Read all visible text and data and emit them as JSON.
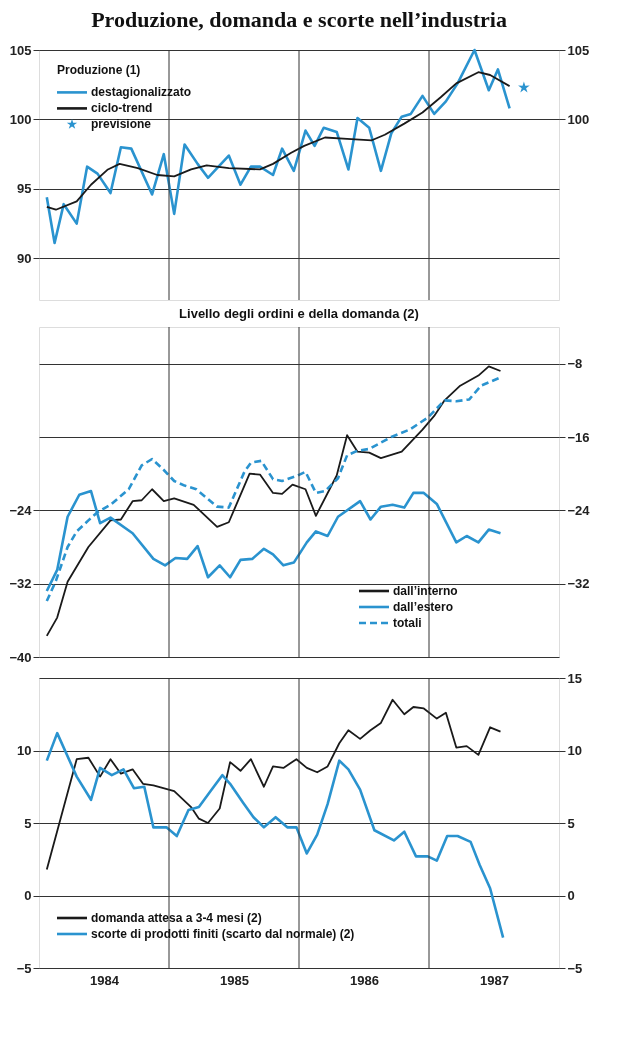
{
  "chart_data": [
    {
      "type": "line",
      "title": "Produzione, domanda e scorte nell’industria",
      "legend_title": "Produzione (1)",
      "legend": "top left",
      "grid": true,
      "tick_labels": "y",
      "xlim": [
        1984,
        1988
      ],
      "xticks": [
        {
          "value": 1985,
          "label": null
        },
        {
          "value": 1986,
          "label": null
        },
        {
          "value": 1987,
          "label": null
        }
      ],
      "ylim": [
        87,
        105
      ],
      "yticks": [
        90,
        95,
        100,
        105
      ],
      "y2lim": [
        87,
        105
      ],
      "y2ticks": [
        100,
        105
      ],
      "series": [
        {
          "name": "destagionalizzato",
          "color": "#2a93cf",
          "x": [
            1984.06,
            1984.12,
            1984.19,
            1984.29,
            1984.37,
            1984.45,
            1984.55,
            1984.63,
            1984.71,
            1984.87,
            1984.96,
            1985.04,
            1985.12,
            1985.22,
            1985.3,
            1985.46,
            1985.55,
            1985.63,
            1985.7,
            1985.8,
            1985.87,
            1985.96,
            1986.05,
            1986.12,
            1986.19,
            1986.29,
            1986.38,
            1986.45,
            1986.54,
            1986.63,
            1986.71,
            1986.79,
            1986.86,
            1986.95,
            1987.04,
            1987.13,
            1987.22,
            1987.35,
            1987.46,
            1987.53,
            1987.62
          ],
          "values": [
            94.4,
            91.1,
            93.9,
            92.5,
            96.6,
            96.1,
            94.7,
            98.0,
            97.9,
            94.6,
            97.5,
            93.2,
            98.2,
            96.8,
            95.8,
            97.4,
            95.3,
            96.6,
            96.6,
            96.0,
            97.9,
            96.3,
            99.2,
            98.1,
            99.4,
            99.1,
            96.4,
            100.1,
            99.4,
            96.3,
            99.0,
            100.2,
            100.4,
            101.7,
            100.4,
            101.3,
            102.6,
            105.0,
            102.1,
            103.6,
            100.8
          ]
        },
        {
          "name": "ciclo-trend",
          "color": "#1a1a1a",
          "x": [
            1984.06,
            1984.13,
            1984.29,
            1984.4,
            1984.53,
            1984.62,
            1984.76,
            1984.91,
            1985.04,
            1985.17,
            1985.29,
            1985.46,
            1985.7,
            1985.8,
            1985.94,
            1986.04,
            1986.2,
            1986.37,
            1986.56,
            1986.66,
            1986.81,
            1986.95,
            1987.09,
            1987.21,
            1987.38,
            1987.47,
            1987.62
          ],
          "values": [
            93.7,
            93.5,
            94.1,
            95.3,
            96.4,
            96.8,
            96.5,
            96.0,
            95.9,
            96.4,
            96.7,
            96.5,
            96.4,
            96.8,
            97.6,
            98.1,
            98.7,
            98.6,
            98.5,
            98.9,
            99.7,
            100.5,
            101.6,
            102.6,
            103.4,
            103.2,
            102.4
          ]
        },
        {
          "name": "previsione",
          "type": "scatter",
          "marker": "star",
          "color": "#2a93cf",
          "x": [
            1987.73
          ],
          "values": [
            102.3
          ]
        }
      ]
    },
    {
      "type": "line",
      "title": "Livello degli ordini e della domanda (2)",
      "legend": "bottom right",
      "grid": true,
      "tick_labels": "y",
      "xlim": [
        1984,
        1988
      ],
      "xticks": [
        {
          "value": 1985,
          "label": null
        },
        {
          "value": 1986,
          "label": null
        },
        {
          "value": 1987,
          "label": null
        }
      ],
      "ylim": [
        -40,
        -4
      ],
      "yticks": [
        -40,
        -32,
        -24
      ],
      "y2lim": [
        -40,
        -4
      ],
      "y2ticks": [
        -32,
        -24,
        -16,
        -8
      ],
      "series": [
        {
          "name": "dall’interno",
          "color": "#1a1a1a",
          "x": [
            1984.06,
            1984.14,
            1984.22,
            1984.38,
            1984.55,
            1984.63,
            1984.72,
            1984.79,
            1984.87,
            1984.96,
            1985.04,
            1985.19,
            1985.37,
            1985.46,
            1985.62,
            1985.7,
            1985.8,
            1985.87,
            1985.95,
            1986.05,
            1986.13,
            1986.29,
            1986.37,
            1986.45,
            1986.54,
            1986.63,
            1986.79,
            1986.95,
            1987.04,
            1987.12,
            1987.24,
            1987.38,
            1987.46,
            1987.55
          ],
          "values": [
            -37.7,
            -35.7,
            -31.8,
            -28.0,
            -25.1,
            -25.0,
            -23.0,
            -22.9,
            -21.7,
            -23.0,
            -22.7,
            -23.4,
            -25.8,
            -25.3,
            -20.0,
            -20.1,
            -22.1,
            -22.2,
            -21.2,
            -21.7,
            -24.6,
            -20.2,
            -15.8,
            -17.6,
            -17.7,
            -18.3,
            -17.6,
            -15.2,
            -13.7,
            -12.0,
            -10.4,
            -9.3,
            -8.3,
            -8.8
          ]
        },
        {
          "name": "dall’estero",
          "color": "#2a93cf",
          "x": [
            1984.06,
            1984.14,
            1984.22,
            1984.31,
            1984.4,
            1984.47,
            1984.55,
            1984.72,
            1984.88,
            1984.97,
            1985.05,
            1985.14,
            1985.22,
            1985.3,
            1985.39,
            1985.47,
            1985.55,
            1985.64,
            1985.73,
            1985.8,
            1985.88,
            1985.96,
            1986.06,
            1986.13,
            1986.22,
            1986.3,
            1986.47,
            1986.55,
            1986.63,
            1986.72,
            1986.81,
            1986.88,
            1986.96,
            1987.06,
            1987.21,
            1987.29,
            1987.38,
            1987.46,
            1987.55
          ],
          "values": [
            -32.8,
            -30.5,
            -24.7,
            -22.3,
            -21.9,
            -25.4,
            -24.8,
            -26.5,
            -29.3,
            -30.0,
            -29.2,
            -29.3,
            -27.9,
            -31.3,
            -30.0,
            -31.3,
            -29.4,
            -29.3,
            -28.2,
            -28.8,
            -30.0,
            -29.7,
            -27.5,
            -26.3,
            -26.8,
            -24.7,
            -23.0,
            -25.0,
            -23.6,
            -23.4,
            -23.7,
            -22.1,
            -22.1,
            -23.3,
            -27.5,
            -26.8,
            -27.5,
            -26.1,
            -26.5
          ]
        },
        {
          "name": "totali",
          "color": "#2a93cf",
          "line_style": "dashed",
          "x": [
            1984.06,
            1984.13,
            1984.22,
            1984.29,
            1984.38,
            1984.45,
            1984.55,
            1984.69,
            1984.79,
            1984.87,
            1984.96,
            1985.04,
            1985.12,
            1985.21,
            1985.37,
            1985.46,
            1985.58,
            1985.63,
            1985.71,
            1985.8,
            1985.87,
            1985.99,
            1986.05,
            1986.13,
            1986.2,
            1986.3,
            1986.37,
            1986.45,
            1986.54,
            1986.71,
            1986.85,
            1986.99,
            1987.12,
            1987.21,
            1987.31,
            1987.4,
            1987.55
          ],
          "values": [
            -33.9,
            -31.7,
            -28.0,
            -26.3,
            -25.1,
            -24.2,
            -23.4,
            -21.7,
            -19.1,
            -18.4,
            -19.6,
            -20.8,
            -21.3,
            -21.7,
            -23.6,
            -23.7,
            -19.8,
            -18.8,
            -18.6,
            -20.6,
            -20.8,
            -20.2,
            -19.8,
            -22.1,
            -21.9,
            -20.5,
            -18.0,
            -17.5,
            -17.3,
            -16.0,
            -15.2,
            -13.9,
            -12.0,
            -12.1,
            -11.9,
            -10.4,
            -9.5
          ]
        }
      ]
    },
    {
      "type": "line",
      "legend": "bottom left",
      "grid": true,
      "xlim": [
        1984,
        1988
      ],
      "xticks": [
        {
          "value": 1984.5,
          "label": "1984"
        },
        {
          "value": 1985,
          "label": null
        },
        {
          "value": 1985.5,
          "label": "1985"
        },
        {
          "value": 1986,
          "label": null
        },
        {
          "value": 1986.5,
          "label": "1986"
        },
        {
          "value": 1987,
          "label": null
        },
        {
          "value": 1987.5,
          "label": "1987"
        }
      ],
      "ylim": [
        -5,
        15
      ],
      "yticks": [
        -5,
        0,
        5,
        10
      ],
      "y2lim": [
        -5,
        15
      ],
      "y2ticks": [
        -5,
        0,
        5,
        10,
        15
      ],
      "series": [
        {
          "name": "domanda attesa a 3-4 mesi (2)",
          "color": "#1a1a1a",
          "x": [
            1984.06,
            1984.29,
            1984.38,
            1984.47,
            1984.55,
            1984.63,
            1984.72,
            1984.8,
            1984.88,
            1985.04,
            1985.17,
            1985.23,
            1985.3,
            1985.39,
            1985.47,
            1985.55,
            1985.63,
            1985.73,
            1985.8,
            1985.88,
            1985.98,
            1986.06,
            1986.14,
            1986.22,
            1986.31,
            1986.38,
            1986.47,
            1986.55,
            1986.63,
            1986.72,
            1986.81,
            1986.88,
            1986.96,
            1987.06,
            1987.13,
            1987.21,
            1987.29,
            1987.38,
            1987.47,
            1987.55
          ],
          "values": [
            1.8,
            9.4,
            9.5,
            8.2,
            9.4,
            8.4,
            8.7,
            7.7,
            7.6,
            7.2,
            6.1,
            5.3,
            5.0,
            6.0,
            9.2,
            8.6,
            9.4,
            7.5,
            8.9,
            8.8,
            9.4,
            8.8,
            8.5,
            8.9,
            10.5,
            11.4,
            10.8,
            11.4,
            11.9,
            13.5,
            12.5,
            13.0,
            12.9,
            12.2,
            12.6,
            10.2,
            10.3,
            9.7,
            11.6,
            11.3
          ]
        },
        {
          "name": "scorte di prodotti finiti (scarto dal normale) (2)",
          "color": "#2a93cf",
          "x": [
            1984.06,
            1984.14,
            1984.29,
            1984.4,
            1984.47,
            1984.56,
            1984.65,
            1984.73,
            1984.81,
            1984.88,
            1984.98,
            1985.06,
            1985.15,
            1985.23,
            1985.32,
            1985.41,
            1985.47,
            1985.57,
            1985.65,
            1985.73,
            1985.82,
            1985.91,
            1985.98,
            1986.06,
            1986.14,
            1986.22,
            1986.31,
            1986.38,
            1986.47,
            1986.58,
            1986.73,
            1986.81,
            1986.9,
            1986.99,
            1987.06,
            1987.14,
            1987.22,
            1987.32,
            1987.39,
            1987.47,
            1987.57
          ],
          "values": [
            9.3,
            11.2,
            8.2,
            6.6,
            8.8,
            8.3,
            8.7,
            7.4,
            7.5,
            4.7,
            4.7,
            4.1,
            5.9,
            6.1,
            7.2,
            8.3,
            7.7,
            6.4,
            5.4,
            4.7,
            5.4,
            4.7,
            4.7,
            2.9,
            4.2,
            6.3,
            9.3,
            8.7,
            7.3,
            4.5,
            3.8,
            4.4,
            2.7,
            2.7,
            2.4,
            4.1,
            4.1,
            3.7,
            2.1,
            0.5,
            -2.9
          ]
        }
      ]
    }
  ]
}
